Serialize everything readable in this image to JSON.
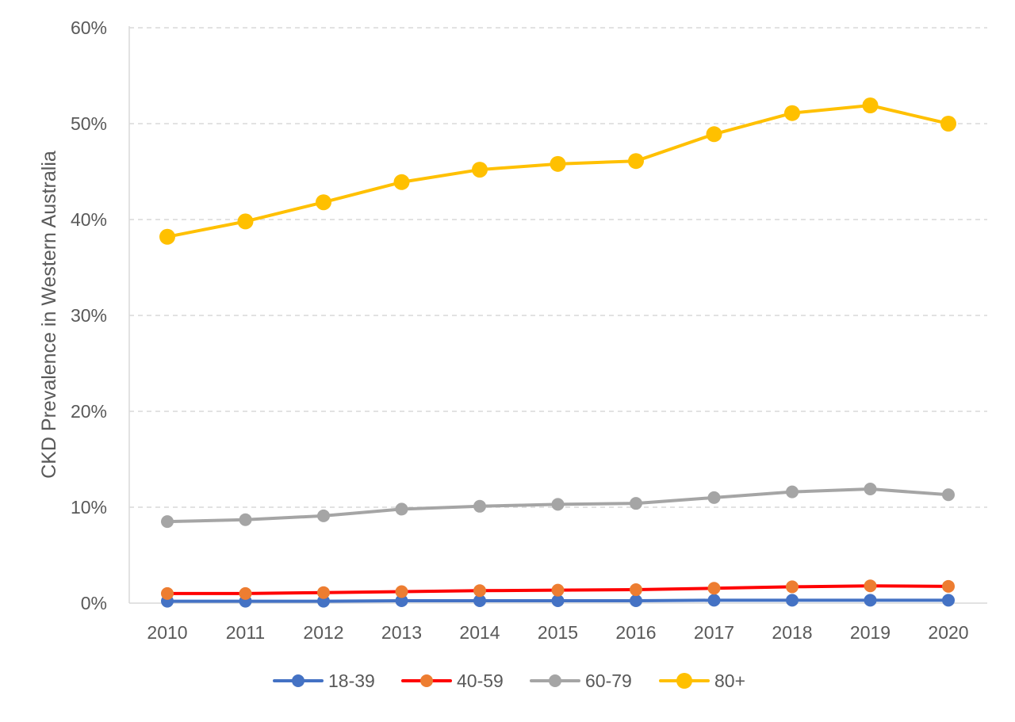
{
  "chart_data": {
    "type": "line",
    "title": "",
    "xlabel": "",
    "ylabel": "CKD Prevalence in Western Australia",
    "x": [
      2010,
      2011,
      2012,
      2013,
      2014,
      2015,
      2016,
      2017,
      2018,
      2019,
      2020
    ],
    "ylim": [
      0,
      60
    ],
    "y_ticks": [
      "0%",
      "10%",
      "20%",
      "30%",
      "40%",
      "50%",
      "60%"
    ],
    "y_unit": "%",
    "grid": "horizontal dashed",
    "legend_position": "bottom",
    "series": [
      {
        "name": "18-39",
        "line_color": "#4472C4",
        "marker_color": "#4472C4",
        "values": [
          0.2,
          0.2,
          0.2,
          0.25,
          0.25,
          0.25,
          0.25,
          0.3,
          0.3,
          0.3,
          0.3
        ]
      },
      {
        "name": "40-59",
        "line_color": "#FF0000",
        "marker_color": "#ED7D31",
        "values": [
          1.0,
          1.0,
          1.1,
          1.2,
          1.3,
          1.35,
          1.4,
          1.55,
          1.7,
          1.8,
          1.75
        ]
      },
      {
        "name": "60-79",
        "line_color": "#A5A5A5",
        "marker_color": "#A5A5A5",
        "values": [
          8.5,
          8.7,
          9.1,
          9.8,
          10.1,
          10.3,
          10.4,
          11.0,
          11.6,
          11.9,
          11.3
        ]
      },
      {
        "name": "80+",
        "line_color": "#FFC000",
        "marker_color": "#FFC000",
        "values": [
          38.2,
          39.8,
          41.8,
          43.9,
          45.2,
          45.8,
          46.1,
          48.9,
          51.1,
          51.9,
          50.0
        ]
      }
    ]
  }
}
